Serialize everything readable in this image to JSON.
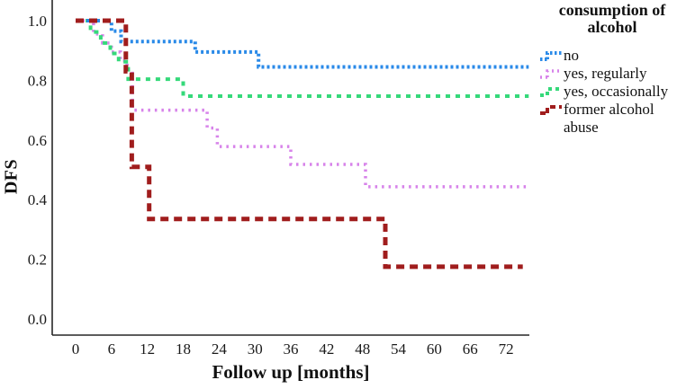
{
  "figure_title": "",
  "axes": {
    "ylabel": "DFS",
    "xlabel": "Follow up [months]"
  },
  "legend": {
    "title_line1": "consumption of",
    "title_line2": "alcohol",
    "items": [
      {
        "label": "no"
      },
      {
        "label": "yes, regularly"
      },
      {
        "label": "yes, occasionally"
      },
      {
        "label": "former alcohol abuse"
      }
    ]
  },
  "chart_data": {
    "type": "line",
    "subtype": "kaplan-meier-step",
    "title": "",
    "xlabel": "Follow up [months]",
    "ylabel": "DFS",
    "xlim": [
      -4,
      79
    ],
    "ylim": [
      -0.05,
      1.07
    ],
    "grid": false,
    "legend_position": "right",
    "xticks": [
      0,
      6,
      12,
      18,
      24,
      30,
      36,
      42,
      48,
      54,
      60,
      66,
      72
    ],
    "yticks": [
      {
        "v": 0.0,
        "label": "0.0"
      },
      {
        "v": 0.2,
        "label": "0.2"
      },
      {
        "v": 0.4,
        "label": "0.4"
      },
      {
        "v": 0.6,
        "label": "0.6"
      },
      {
        "v": 0.8,
        "label": "0.8"
      },
      {
        "v": 1.0,
        "label": "1.0"
      }
    ],
    "series": [
      {
        "name": "yes, regularly",
        "color": "#d783ea",
        "dash": "2.5 5",
        "width": 3.5,
        "key_dash": "2 4",
        "points": [
          [
            0,
            1.0
          ],
          [
            3,
            1.0
          ],
          [
            3,
            0.955
          ],
          [
            4.5,
            0.955
          ],
          [
            4.5,
            0.925
          ],
          [
            6,
            0.925
          ],
          [
            6,
            0.895
          ],
          [
            7.5,
            0.895
          ],
          [
            7.5,
            0.865
          ],
          [
            8.6,
            0.865
          ],
          [
            8.6,
            0.835
          ],
          [
            9.5,
            0.835
          ],
          [
            9.5,
            0.7
          ],
          [
            22,
            0.7
          ],
          [
            22,
            0.64
          ],
          [
            23.7,
            0.64
          ],
          [
            23.7,
            0.578
          ],
          [
            36,
            0.578
          ],
          [
            36,
            0.518
          ],
          [
            48.5,
            0.518
          ],
          [
            48.5,
            0.443
          ],
          [
            75.8,
            0.443
          ]
        ]
      },
      {
        "name": "yes, occasionally",
        "color": "#35d97a",
        "dash": "5 6",
        "width": 4,
        "key_dash": "4 4",
        "points": [
          [
            0,
            1.0
          ],
          [
            2.5,
            1.0
          ],
          [
            2.5,
            0.962
          ],
          [
            4.2,
            0.962
          ],
          [
            4.2,
            0.925
          ],
          [
            5.8,
            0.925
          ],
          [
            5.8,
            0.89
          ],
          [
            7.2,
            0.89
          ],
          [
            7.2,
            0.862
          ],
          [
            8.8,
            0.862
          ],
          [
            8.8,
            0.804
          ],
          [
            18,
            0.804
          ],
          [
            18,
            0.747
          ],
          [
            75.8,
            0.747
          ]
        ]
      },
      {
        "name": "no",
        "color": "#2a8ae8",
        "dash": "3 3",
        "width": 4,
        "key_dash": "2.5 2.5",
        "points": [
          [
            0,
            1.0
          ],
          [
            6,
            1.0
          ],
          [
            6,
            0.965
          ],
          [
            7.6,
            0.965
          ],
          [
            7.6,
            0.93
          ],
          [
            20,
            0.93
          ],
          [
            20,
            0.895
          ],
          [
            30.6,
            0.895
          ],
          [
            30.6,
            0.845
          ],
          [
            75.8,
            0.845
          ]
        ]
      },
      {
        "name": "former alcohol abuse",
        "color": "#a01d1d",
        "dash": "9 6",
        "width": 5,
        "key_dash": "6 4",
        "points": [
          [
            0,
            1.0
          ],
          [
            8.4,
            1.0
          ],
          [
            8.4,
            0.83
          ],
          [
            9.4,
            0.83
          ],
          [
            9.4,
            0.51
          ],
          [
            12.3,
            0.51
          ],
          [
            12.3,
            0.335
          ],
          [
            51.8,
            0.335
          ],
          [
            51.8,
            0.175
          ],
          [
            74.8,
            0.175
          ]
        ]
      }
    ],
    "legend_order": [
      "no",
      "yes, regularly",
      "yes, occasionally",
      "former alcohol abuse"
    ]
  }
}
